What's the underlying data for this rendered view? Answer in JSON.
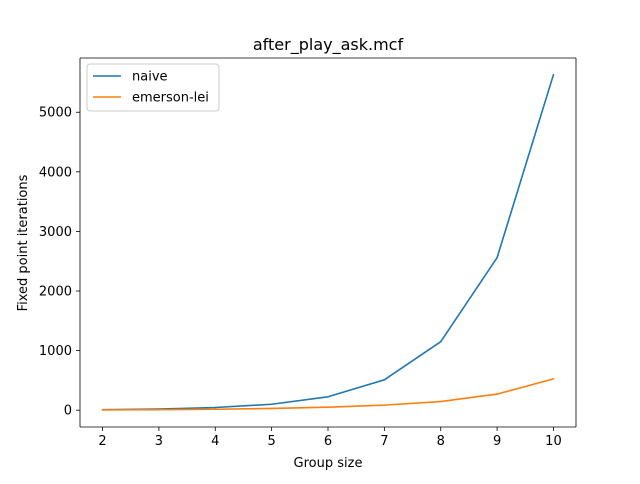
{
  "chart_data": {
    "type": "line",
    "title": "after_play_ask.mcf",
    "xlabel": "Group size",
    "ylabel": "Fixed point iterations",
    "x": [
      2,
      3,
      4,
      5,
      6,
      7,
      8,
      9,
      10
    ],
    "xlim": [
      1.6,
      10.4
    ],
    "ylim": [
      -282,
      5910
    ],
    "xticks": [
      2,
      3,
      4,
      5,
      6,
      7,
      8,
      9,
      10
    ],
    "yticks": [
      0,
      1000,
      2000,
      3000,
      4000,
      5000
    ],
    "grid": false,
    "legend_position": "upper-left",
    "series": [
      {
        "name": "naive",
        "color": "#1f77b4",
        "values": [
          8,
          20,
          45,
          100,
          225,
          510,
          1150,
          2560,
          5630
        ]
      },
      {
        "name": "emerson-lei",
        "color": "#ff7f0e",
        "values": [
          4,
          8,
          16,
          30,
          50,
          85,
          145,
          270,
          525
        ]
      }
    ]
  }
}
